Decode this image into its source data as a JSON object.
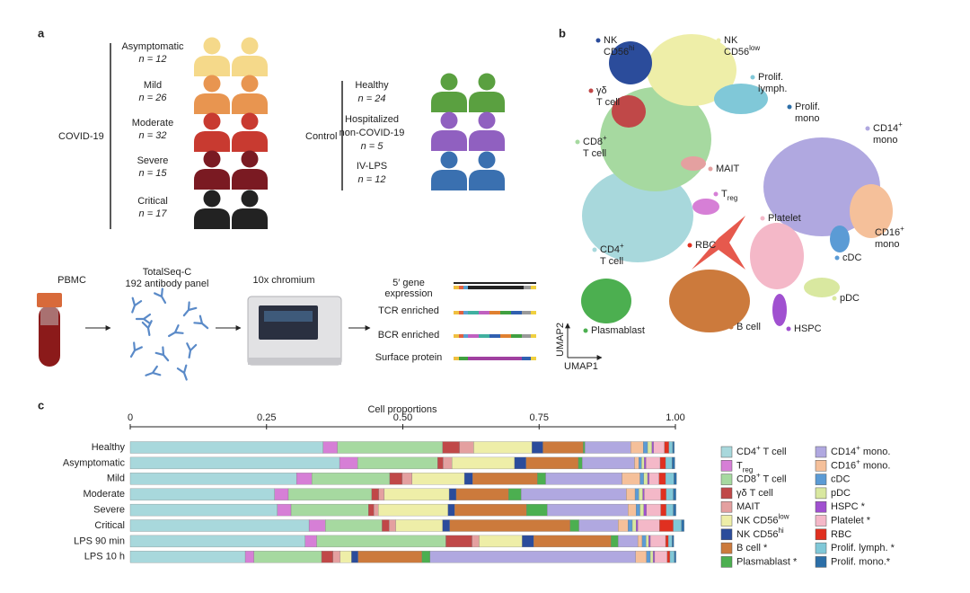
{
  "panel_a": {
    "label": "a",
    "covid": {
      "label": "COVID-19",
      "groups": [
        {
          "name": [
            "Asymptomatic"
          ],
          "n": "n = 12"
        },
        {
          "name": [
            "Mild"
          ],
          "n": "n = 26"
        },
        {
          "name": [
            "Moderate"
          ],
          "n": "n = 32"
        },
        {
          "name": [
            "Severe"
          ],
          "n": "n = 15"
        },
        {
          "name": [
            "Critical"
          ],
          "n": "n = 17"
        }
      ]
    },
    "control": {
      "label": "Control",
      "groups": [
        {
          "name": [
            "Healthy"
          ],
          "n": "n = 24"
        },
        {
          "name": [
            "Hospitalized",
            "non-COVID-19"
          ],
          "n": "n = 5"
        },
        {
          "name": [
            "IV-LPS"
          ],
          "n": "n = 12"
        }
      ]
    },
    "workflow": {
      "steps": [
        [
          "PBMC"
        ],
        [
          "TotalSeq-C",
          "192 antibody panel"
        ],
        [
          "10x chromium"
        ]
      ],
      "outputs": [
        [
          "5′ gene",
          "expression"
        ],
        [
          "TCR enriched"
        ],
        [
          "BCR enriched"
        ],
        [
          "Surface protein"
        ]
      ]
    }
  },
  "panel_b": {
    "label": "b",
    "x_label": "UMAP1",
    "y_label": "UMAP2",
    "clusters": [
      {
        "lines": [
          [
            "NK"
          ],
          [
            "CD56",
            {
              "sup": "hi"
            }
          ]
        ]
      },
      {
        "lines": [
          [
            "NK"
          ],
          [
            "CD56",
            {
              "sup": "low"
            }
          ]
        ]
      },
      {
        "lines": [
          [
            "Prolif."
          ],
          [
            "lymph."
          ]
        ]
      },
      {
        "lines": [
          [
            "γδ"
          ],
          [
            "T cell"
          ]
        ]
      },
      {
        "lines": [
          [
            "Prolif."
          ],
          [
            "mono"
          ]
        ]
      },
      {
        "lines": [
          [
            "CD14",
            {
              "sup": "+"
            }
          ],
          [
            "mono"
          ]
        ]
      },
      {
        "lines": [
          [
            "CD8",
            {
              "sup": "+"
            }
          ],
          [
            "T cell"
          ]
        ]
      },
      {
        "lines": [
          [
            "MAIT"
          ]
        ]
      },
      {
        "lines": [
          [
            "T",
            {
              "sub": "reg"
            }
          ]
        ]
      },
      {
        "lines": [
          [
            "Platelet"
          ]
        ]
      },
      {
        "lines": [
          [
            "CD16",
            {
              "sup": "+"
            }
          ],
          [
            "mono"
          ]
        ]
      },
      {
        "lines": [
          [
            "RBC"
          ]
        ]
      },
      {
        "lines": [
          [
            "CD4",
            {
              "sup": "+"
            }
          ],
          [
            "T cell"
          ]
        ]
      },
      {
        "lines": [
          [
            "cDC"
          ]
        ]
      },
      {
        "lines": [
          [
            "pDC"
          ]
        ]
      },
      {
        "lines": [
          [
            "Plasmablast"
          ]
        ]
      },
      {
        "lines": [
          [
            "B cell"
          ]
        ]
      },
      {
        "lines": [
          [
            "HSPC"
          ]
        ]
      }
    ]
  },
  "chart_data": {
    "type": "bar",
    "orientation": "horizontal",
    "stacked": true,
    "panel_label": "c",
    "x_label": "Cell proportions",
    "categories": [
      "Healthy",
      "Asymptomatic",
      "Mild",
      "Moderate",
      "Severe",
      "Critical",
      "LPS 90 min",
      "LPS 10 h"
    ],
    "xlim": [
      0,
      1
    ],
    "xticks": [
      0,
      0.25,
      {
        "value": 0.5,
        "label": "0.50"
      },
      0.75,
      {
        "value": 1,
        "label": "1.00"
      }
    ],
    "series": [
      {
        "name": [
          "CD4",
          {
            "sup": "+"
          },
          " T cell"
        ],
        "color": "#a8d8dc",
        "values": [
          0.354,
          0.384,
          0.305,
          0.265,
          0.27,
          0.328,
          0.321,
          0.211
        ]
      },
      {
        "name": [
          "T",
          {
            "sub": "reg"
          }
        ],
        "color": "#d67fd6",
        "values": [
          0.026,
          0.033,
          0.028,
          0.025,
          0.025,
          0.03,
          0.021,
          0.016
        ]
      },
      {
        "name": [
          "CD8",
          {
            "sup": "+"
          },
          " T cell"
        ],
        "color": "#a6d9a0",
        "values": [
          0.193,
          0.147,
          0.143,
          0.153,
          0.142,
          0.104,
          0.237,
          0.124
        ]
      },
      {
        "name": [
          "γδ T cell"
        ],
        "color": "#c04848",
        "values": [
          0.031,
          0.01,
          0.023,
          0.013,
          0.01,
          0.013,
          0.048,
          0.021
        ]
      },
      {
        "name": [
          "MAIT"
        ],
        "color": "#e4a0a0",
        "values": [
          0.026,
          0.016,
          0.018,
          0.01,
          0.008,
          0.012,
          0.013,
          0.013
        ]
      },
      {
        "name": [
          "NK CD56",
          {
            "sup": "low"
          }
        ],
        "color": "#eeeea8",
        "values": [
          0.107,
          0.115,
          0.096,
          0.119,
          0.128,
          0.086,
          0.079,
          0.021
        ]
      },
      {
        "name": [
          "NK CD56",
          {
            "sup": "hi"
          }
        ],
        "color": "#2b4c9b",
        "values": [
          0.02,
          0.021,
          0.015,
          0.013,
          0.012,
          0.013,
          0.021,
          0.012
        ]
      },
      {
        "name": [
          "B cell *"
        ],
        "color": "#cc7a3c",
        "values": [
          0.074,
          0.096,
          0.119,
          0.096,
          0.132,
          0.221,
          0.142,
          0.117
        ]
      },
      {
        "name": [
          "Plasmablast *"
        ],
        "color": "#4caf50",
        "values": [
          0.003,
          0.007,
          0.015,
          0.023,
          0.038,
          0.016,
          0.013,
          0.015
        ]
      },
      {
        "name": [
          "CD14",
          {
            "sup": "+"
          },
          " mono."
        ],
        "color": "#b0a8e0",
        "values": [
          0.084,
          0.096,
          0.14,
          0.193,
          0.148,
          0.072,
          0.036,
          0.377
        ]
      },
      {
        "name": [
          "CD16",
          {
            "sup": "+"
          },
          " mono."
        ],
        "color": "#f5c09a",
        "values": [
          0.023,
          0.008,
          0.033,
          0.016,
          0.015,
          0.018,
          0.008,
          0.02
        ]
      },
      {
        "name": [
          "cDC"
        ],
        "color": "#5b9bd5",
        "values": [
          0.008,
          0.005,
          0.007,
          0.007,
          0.007,
          0.008,
          0.007,
          0.007
        ]
      },
      {
        "name": [
          "pDC"
        ],
        "color": "#d9e8a0",
        "values": [
          0.008,
          0.005,
          0.007,
          0.007,
          0.007,
          0.007,
          0.005,
          0.005
        ]
      },
      {
        "name": [
          "HSPC *"
        ],
        "color": "#a050d0",
        "values": [
          0.003,
          0.003,
          0.003,
          0.003,
          0.005,
          0.003,
          0.003,
          0.003
        ]
      },
      {
        "name": [
          "Platelet *"
        ],
        "color": "#f4b8c8",
        "values": [
          0.02,
          0.026,
          0.018,
          0.03,
          0.026,
          0.04,
          0.028,
          0.023
        ]
      },
      {
        "name": [
          "RBC"
        ],
        "color": "#e03020",
        "values": [
          0.008,
          0.01,
          0.012,
          0.01,
          0.01,
          0.025,
          0.005,
          0.005
        ]
      },
      {
        "name": [
          "Prolif. lymph. *"
        ],
        "color": "#80c8d8",
        "values": [
          0.007,
          0.012,
          0.015,
          0.013,
          0.013,
          0.015,
          0.007,
          0.008
        ]
      },
      {
        "name": [
          "Prolif. mono.*"
        ],
        "color": "#2c6fa8",
        "values": [
          0.003,
          0.005,
          0.005,
          0.005,
          0.005,
          0.005,
          0.003,
          0.003
        ]
      }
    ]
  }
}
